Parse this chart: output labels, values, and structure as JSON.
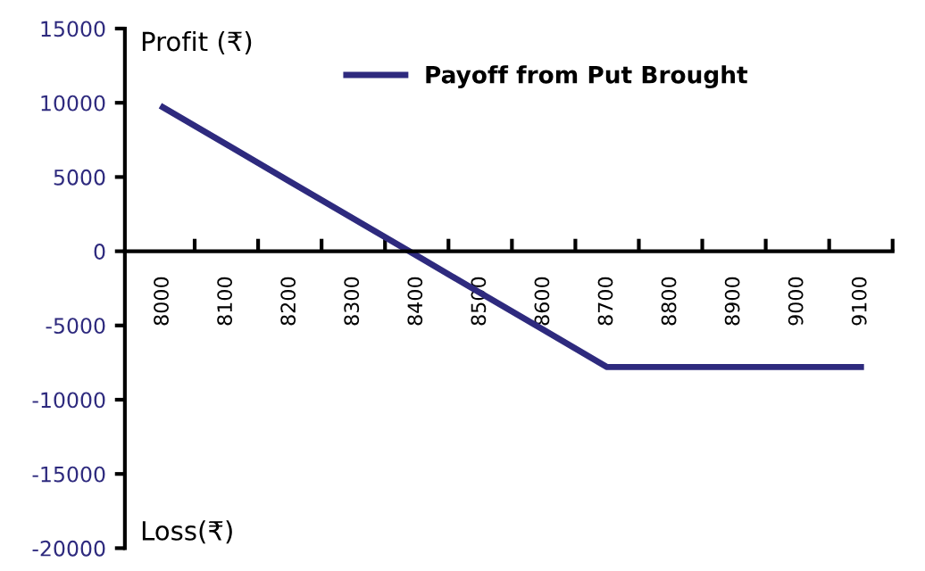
{
  "chart_data": {
    "type": "line",
    "ylabel": "Profit (₹)",
    "annotations": [
      "Loss(₹)"
    ],
    "categories": [
      "8000",
      "8100",
      "8200",
      "8300",
      "8400",
      "8500",
      "8600",
      "8700",
      "8800",
      "8900",
      "9000",
      "9100"
    ],
    "series": [
      {
        "name": "Payoff from Put Brought",
        "color": "#2e2a7e",
        "values": [
          9700,
          7200,
          4700,
          2200,
          -300,
          -2800,
          -5300,
          -7800,
          -7800,
          -7800,
          -7800,
          -7800
        ]
      }
    ],
    "ylim": [
      -20000,
      15000
    ],
    "yticks": [
      -20000,
      -15000,
      -10000,
      -5000,
      0,
      5000,
      10000,
      15000
    ],
    "grid": false,
    "legend": "top",
    "marker": "none",
    "line_style": "solid"
  }
}
